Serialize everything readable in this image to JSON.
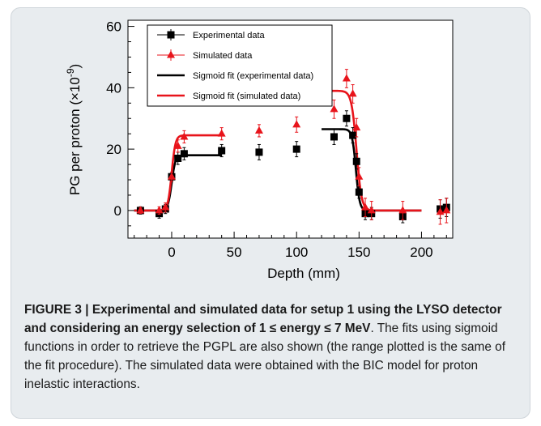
{
  "chart_data": {
    "type": "scatter",
    "xlabel": "Depth (mm)",
    "ylabel": "PG per proton (×10",
    "ylabel_sup": "-9",
    "ylabel_close": ")",
    "xlim": [
      -35,
      225
    ],
    "ylim": [
      -9,
      62
    ],
    "xticks": [
      0,
      50,
      100,
      150,
      200
    ],
    "yticks": [
      0,
      20,
      40,
      60
    ],
    "legend_position": "top-left",
    "series": [
      {
        "name": "Experimental data",
        "marker": "square",
        "color": "#000000",
        "x": [
          -25,
          -10,
          -5,
          0,
          5,
          10,
          40,
          70,
          100,
          130,
          140,
          145,
          148,
          150,
          155,
          160,
          185,
          215,
          220
        ],
        "y": [
          0,
          -1,
          0.5,
          11,
          17,
          18.5,
          19.5,
          19,
          20,
          24,
          30,
          24.5,
          16,
          6,
          -1,
          -1,
          -2,
          0.5,
          1
        ],
        "err": [
          1.2,
          1.5,
          1.5,
          1.5,
          2,
          2,
          2,
          2.5,
          2.5,
          2.5,
          2.5,
          2.5,
          2.5,
          2,
          2,
          2,
          2,
          3,
          3
        ]
      },
      {
        "name": "Simulated data",
        "marker": "triangle",
        "color": "#e8141b",
        "x": [
          -25,
          -10,
          -5,
          0,
          5,
          10,
          40,
          70,
          100,
          130,
          140,
          145,
          148,
          150,
          155,
          160,
          185,
          215,
          220
        ],
        "y": [
          0,
          0,
          1,
          11,
          21,
          24,
          25,
          26,
          28,
          33,
          43,
          38,
          27,
          11,
          1,
          0,
          0,
          -0.5,
          0
        ],
        "err": [
          1,
          1.2,
          1.5,
          1.5,
          2,
          2,
          2,
          2,
          2.5,
          3,
          3,
          3,
          3,
          3,
          3,
          3,
          3,
          4,
          4
        ]
      }
    ],
    "fits": [
      {
        "name": "Sigmoid fit (experimental data)",
        "color": "#000000",
        "segments": [
          {
            "x0": -30,
            "x1": 40,
            "low": 0,
            "high": 18,
            "mid": 0,
            "width": 1.5,
            "rising": true
          },
          {
            "x0": 120,
            "x1": 200,
            "low": 0,
            "high": 26.5,
            "mid": 147.5,
            "width": 1.5,
            "rising": false
          }
        ]
      },
      {
        "name": "Sigmoid fit (simulated data)",
        "color": "#e8141b",
        "segments": [
          {
            "x0": -30,
            "x1": 40,
            "low": 0,
            "high": 24.5,
            "mid": 0,
            "width": 1.5,
            "rising": true
          },
          {
            "x0": 120,
            "x1": 200,
            "low": 0,
            "high": 39,
            "mid": 148,
            "width": 2,
            "rising": false
          }
        ]
      }
    ]
  },
  "caption": {
    "label": "FIGURE 3 | Experimental and simulated data for setup 1 using the LYSO detector and considering an energy selection of 1 ≤ energy ≤ 7 MeV",
    "text": ". The fits using sigmoid functions in order to retrieve the PGPL are also shown (the range plotted is the same of the fit procedure). The simulated data were obtained with the BIC model for proton inelastic interactions."
  }
}
